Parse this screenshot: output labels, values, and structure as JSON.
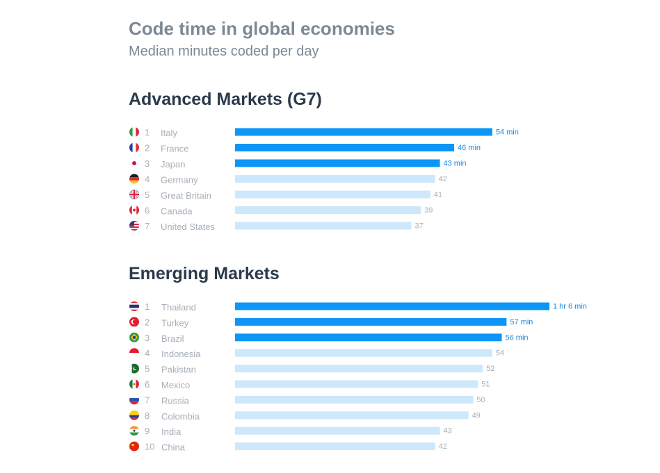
{
  "header": {
    "title": "Code time in global economies",
    "subtitle": "Median minutes coded per day"
  },
  "colors": {
    "bar_highlight": "#0d96f5",
    "bar_normal": "#cde8fb",
    "value_highlight": "#1389e6",
    "value_normal": "#a7afb7"
  },
  "chart_data": [
    {
      "type": "bar",
      "orientation": "horizontal",
      "title": "Advanced Markets (G7)",
      "unit": "minutes",
      "xlim": [
        0,
        66
      ],
      "categories": [
        "Italy",
        "France",
        "Japan",
        "Germany",
        "Great Britain",
        "Canada",
        "United States"
      ],
      "ranks": [
        "1",
        "2",
        "3",
        "4",
        "5",
        "6",
        "7"
      ],
      "values": [
        54,
        46,
        43,
        42,
        41,
        39,
        37
      ],
      "value_labels": [
        "54 min",
        "46 min",
        "43 min",
        "42",
        "41",
        "39",
        "37"
      ],
      "highlighted": [
        true,
        true,
        true,
        false,
        false,
        false,
        false
      ],
      "flags": [
        "italy-flag-icon",
        "france-flag-icon",
        "japan-flag-icon",
        "germany-flag-icon",
        "great-britain-flag-icon",
        "canada-flag-icon",
        "united-states-flag-icon"
      ]
    },
    {
      "type": "bar",
      "orientation": "horizontal",
      "title": "Emerging Markets",
      "unit": "minutes",
      "xlim": [
        0,
        66
      ],
      "categories": [
        "Thailand",
        "Turkey",
        "Brazil",
        "Indonesia",
        "Pakistan",
        "Mexico",
        "Russia",
        "Colombia",
        "India",
        "China"
      ],
      "ranks": [
        "1",
        "2",
        "3",
        "4",
        "5",
        "6",
        "7",
        "8",
        "9",
        "10"
      ],
      "values": [
        66,
        57,
        56,
        54,
        52,
        51,
        50,
        49,
        43,
        42
      ],
      "value_labels": [
        "1 hr 6 min",
        "57 min",
        "56 min",
        "54",
        "52",
        "51",
        "50",
        "49",
        "43",
        "42"
      ],
      "highlighted": [
        true,
        true,
        true,
        false,
        false,
        false,
        false,
        false,
        false,
        false
      ],
      "flags": [
        "thailand-flag-icon",
        "turkey-flag-icon",
        "brazil-flag-icon",
        "indonesia-flag-icon",
        "pakistan-flag-icon",
        "mexico-flag-icon",
        "russia-flag-icon",
        "colombia-flag-icon",
        "india-flag-icon",
        "china-flag-icon"
      ]
    }
  ]
}
